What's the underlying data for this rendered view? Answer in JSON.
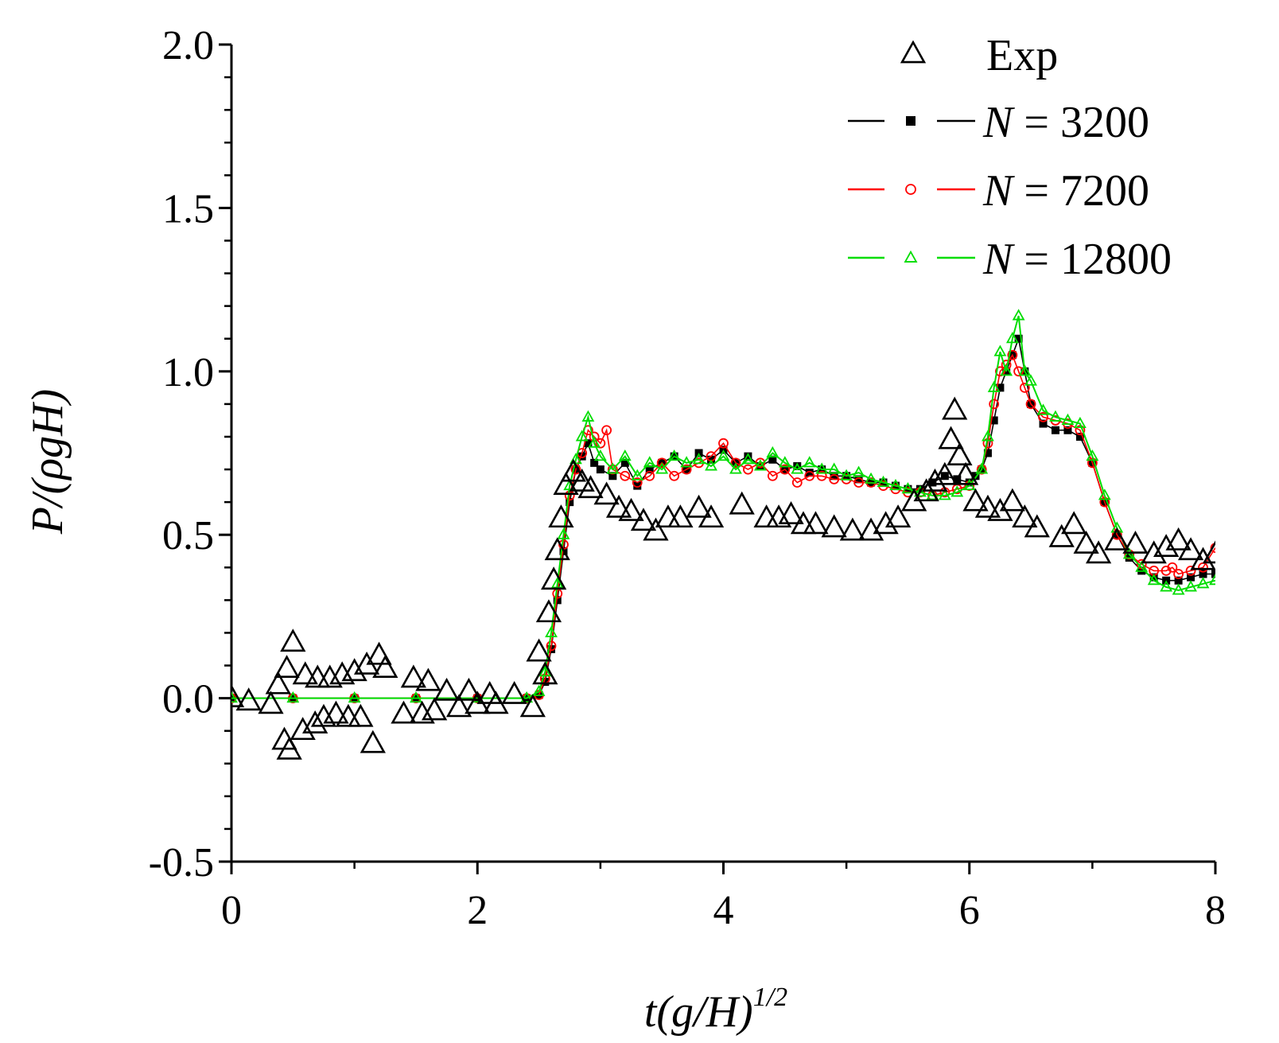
{
  "chart_data": {
    "type": "scatter",
    "title": "",
    "xlabel": "t(g/H)",
    "xlabel_sup": "1/2",
    "ylabel": "P/(ρgH)",
    "xlim": [
      0,
      8
    ],
    "ylim": [
      -0.5,
      2.0
    ],
    "xticks": [
      0,
      2,
      4,
      6,
      8
    ],
    "xtick_labels": [
      "0",
      "2",
      "4",
      "6",
      "8"
    ],
    "yticks": [
      -0.5,
      0.0,
      0.5,
      1.0,
      1.5,
      2.0
    ],
    "ytick_labels": [
      "-0.5",
      "0.0",
      "0.5",
      "1.0",
      "1.5",
      "2.0"
    ],
    "legend_position": "top-right",
    "colors": {
      "exp": "#000000",
      "n3200": "#000000",
      "n7200": "#ff0000",
      "n12800": "#00dd00"
    },
    "series": [
      {
        "name": "Exp",
        "legend_label": "Exp",
        "marker": "triangle-open",
        "x": [
          0.0,
          0.14,
          0.32,
          0.38,
          0.43,
          0.45,
          0.47,
          0.5,
          0.58,
          0.6,
          0.68,
          0.7,
          0.75,
          0.8,
          0.85,
          0.9,
          0.95,
          1.0,
          1.05,
          1.1,
          1.15,
          1.2,
          1.25,
          1.4,
          1.48,
          1.55,
          1.6,
          1.65,
          1.75,
          1.85,
          1.93,
          2.0,
          2.1,
          2.15,
          2.3,
          2.45,
          2.5,
          2.55,
          2.58,
          2.62,
          2.65,
          2.68,
          2.72,
          2.78,
          2.85,
          2.92,
          3.05,
          3.15,
          3.25,
          3.35,
          3.45,
          3.55,
          3.65,
          3.8,
          3.9,
          4.15,
          4.35,
          4.45,
          4.55,
          4.65,
          4.75,
          4.9,
          5.05,
          5.2,
          5.32,
          5.42,
          5.55,
          5.65,
          5.72,
          5.8,
          5.85,
          5.88,
          5.92,
          5.97,
          6.05,
          6.15,
          6.25,
          6.35,
          6.45,
          6.55,
          6.75,
          6.85,
          6.95,
          7.05,
          7.2,
          7.35,
          7.5,
          7.6,
          7.7,
          7.8,
          7.9,
          8.0
        ],
        "y": [
          0.0,
          -0.01,
          -0.02,
          0.04,
          -0.13,
          0.09,
          -0.16,
          0.17,
          -0.1,
          0.07,
          -0.08,
          0.06,
          -0.06,
          0.06,
          -0.05,
          0.07,
          -0.06,
          0.08,
          -0.06,
          0.1,
          -0.14,
          0.13,
          0.09,
          -0.05,
          0.06,
          -0.05,
          0.05,
          -0.04,
          0.02,
          -0.03,
          0.02,
          -0.02,
          0.01,
          -0.02,
          0.01,
          -0.03,
          0.14,
          0.07,
          0.26,
          0.36,
          0.45,
          0.55,
          0.65,
          0.69,
          0.66,
          0.64,
          0.62,
          0.58,
          0.57,
          0.54,
          0.51,
          0.55,
          0.55,
          0.58,
          0.55,
          0.59,
          0.55,
          0.55,
          0.56,
          0.53,
          0.53,
          0.52,
          0.51,
          0.51,
          0.53,
          0.55,
          0.6,
          0.63,
          0.66,
          0.68,
          0.79,
          0.88,
          0.74,
          0.68,
          0.6,
          0.58,
          0.57,
          0.6,
          0.55,
          0.52,
          0.49,
          0.53,
          0.47,
          0.44,
          0.48,
          0.47,
          0.44,
          0.46,
          0.48,
          0.45,
          0.42,
          0.44
        ]
      },
      {
        "name": "N = 3200",
        "legend_prefix": "N",
        "legend_value": "= 3200",
        "marker": "square-filled",
        "x": [
          0.0,
          0.5,
          1.0,
          1.5,
          2.0,
          2.4,
          2.5,
          2.55,
          2.6,
          2.65,
          2.7,
          2.75,
          2.8,
          2.85,
          2.9,
          2.95,
          3.0,
          3.1,
          3.2,
          3.3,
          3.4,
          3.5,
          3.6,
          3.7,
          3.8,
          3.9,
          4.0,
          4.1,
          4.2,
          4.3,
          4.4,
          4.5,
          4.6,
          4.7,
          4.8,
          4.9,
          5.0,
          5.1,
          5.2,
          5.3,
          5.4,
          5.5,
          5.6,
          5.7,
          5.8,
          5.9,
          6.0,
          6.05,
          6.1,
          6.15,
          6.2,
          6.25,
          6.3,
          6.35,
          6.4,
          6.45,
          6.5,
          6.6,
          6.7,
          6.8,
          6.9,
          7.0,
          7.1,
          7.2,
          7.3,
          7.4,
          7.5,
          7.6,
          7.7,
          7.8,
          7.9,
          8.0
        ],
        "y": [
          0.0,
          0.0,
          0.0,
          0.0,
          0.0,
          0.0,
          0.01,
          0.05,
          0.15,
          0.3,
          0.45,
          0.6,
          0.7,
          0.74,
          0.78,
          0.72,
          0.7,
          0.68,
          0.72,
          0.65,
          0.7,
          0.72,
          0.74,
          0.7,
          0.75,
          0.73,
          0.76,
          0.72,
          0.74,
          0.71,
          0.73,
          0.7,
          0.71,
          0.69,
          0.7,
          0.68,
          0.68,
          0.67,
          0.66,
          0.66,
          0.65,
          0.64,
          0.64,
          0.66,
          0.68,
          0.67,
          0.66,
          0.68,
          0.7,
          0.75,
          0.85,
          0.95,
          1.0,
          1.05,
          1.1,
          1.0,
          0.9,
          0.84,
          0.82,
          0.82,
          0.8,
          0.72,
          0.6,
          0.5,
          0.43,
          0.39,
          0.37,
          0.36,
          0.36,
          0.37,
          0.38,
          0.38
        ]
      },
      {
        "name": "N = 7200",
        "legend_prefix": "N",
        "legend_value": "= 7200",
        "marker": "circle-open",
        "x": [
          0.0,
          0.5,
          1.0,
          1.5,
          2.0,
          2.4,
          2.5,
          2.55,
          2.6,
          2.65,
          2.7,
          2.75,
          2.8,
          2.85,
          2.9,
          2.95,
          3.0,
          3.05,
          3.1,
          3.2,
          3.3,
          3.4,
          3.5,
          3.6,
          3.7,
          3.8,
          3.9,
          4.0,
          4.1,
          4.2,
          4.3,
          4.4,
          4.5,
          4.6,
          4.7,
          4.8,
          4.9,
          5.0,
          5.1,
          5.2,
          5.3,
          5.4,
          5.5,
          5.6,
          5.7,
          5.8,
          5.9,
          6.0,
          6.1,
          6.15,
          6.2,
          6.25,
          6.3,
          6.35,
          6.4,
          6.45,
          6.5,
          6.6,
          6.7,
          6.8,
          6.9,
          7.0,
          7.1,
          7.2,
          7.3,
          7.4,
          7.5,
          7.6,
          7.65,
          7.7,
          7.8,
          7.9,
          8.0
        ],
        "y": [
          0.0,
          0.0,
          0.0,
          0.0,
          0.0,
          0.0,
          0.01,
          0.06,
          0.16,
          0.32,
          0.47,
          0.62,
          0.7,
          0.75,
          0.82,
          0.8,
          0.78,
          0.82,
          0.7,
          0.68,
          0.66,
          0.68,
          0.72,
          0.68,
          0.7,
          0.72,
          0.74,
          0.78,
          0.72,
          0.7,
          0.72,
          0.68,
          0.7,
          0.66,
          0.68,
          0.68,
          0.67,
          0.67,
          0.66,
          0.66,
          0.65,
          0.64,
          0.63,
          0.63,
          0.62,
          0.63,
          0.64,
          0.65,
          0.7,
          0.78,
          0.9,
          1.0,
          1.02,
          1.05,
          1.0,
          0.95,
          0.9,
          0.86,
          0.85,
          0.84,
          0.82,
          0.72,
          0.6,
          0.5,
          0.44,
          0.41,
          0.39,
          0.39,
          0.4,
          0.38,
          0.39,
          0.4,
          0.46
        ]
      },
      {
        "name": "N = 12800",
        "legend_prefix": "N",
        "legend_value": "= 12800",
        "marker": "triangle-open",
        "x": [
          0.0,
          0.5,
          1.0,
          1.5,
          2.0,
          2.4,
          2.5,
          2.55,
          2.6,
          2.65,
          2.7,
          2.75,
          2.8,
          2.85,
          2.9,
          2.95,
          3.0,
          3.1,
          3.2,
          3.3,
          3.4,
          3.5,
          3.6,
          3.7,
          3.8,
          3.9,
          4.0,
          4.1,
          4.2,
          4.3,
          4.4,
          4.5,
          4.6,
          4.7,
          4.8,
          4.9,
          5.0,
          5.1,
          5.2,
          5.3,
          5.4,
          5.5,
          5.6,
          5.7,
          5.8,
          5.9,
          6.0,
          6.1,
          6.15,
          6.2,
          6.25,
          6.3,
          6.35,
          6.4,
          6.45,
          6.5,
          6.6,
          6.7,
          6.8,
          6.9,
          7.0,
          7.1,
          7.2,
          7.3,
          7.4,
          7.5,
          7.6,
          7.7,
          7.8,
          7.9,
          8.0
        ],
        "y": [
          0.0,
          0.0,
          0.0,
          0.0,
          0.0,
          0.0,
          0.02,
          0.08,
          0.2,
          0.35,
          0.5,
          0.65,
          0.73,
          0.8,
          0.86,
          0.78,
          0.74,
          0.7,
          0.74,
          0.68,
          0.72,
          0.7,
          0.74,
          0.72,
          0.73,
          0.71,
          0.74,
          0.7,
          0.73,
          0.71,
          0.75,
          0.72,
          0.7,
          0.72,
          0.7,
          0.7,
          0.68,
          0.69,
          0.67,
          0.66,
          0.65,
          0.64,
          0.63,
          0.62,
          0.62,
          0.63,
          0.65,
          0.7,
          0.8,
          0.95,
          1.06,
          1.0,
          1.1,
          1.17,
          1.0,
          0.97,
          0.88,
          0.86,
          0.85,
          0.84,
          0.74,
          0.62,
          0.52,
          0.44,
          0.4,
          0.36,
          0.34,
          0.33,
          0.34,
          0.35,
          0.36
        ]
      }
    ]
  }
}
